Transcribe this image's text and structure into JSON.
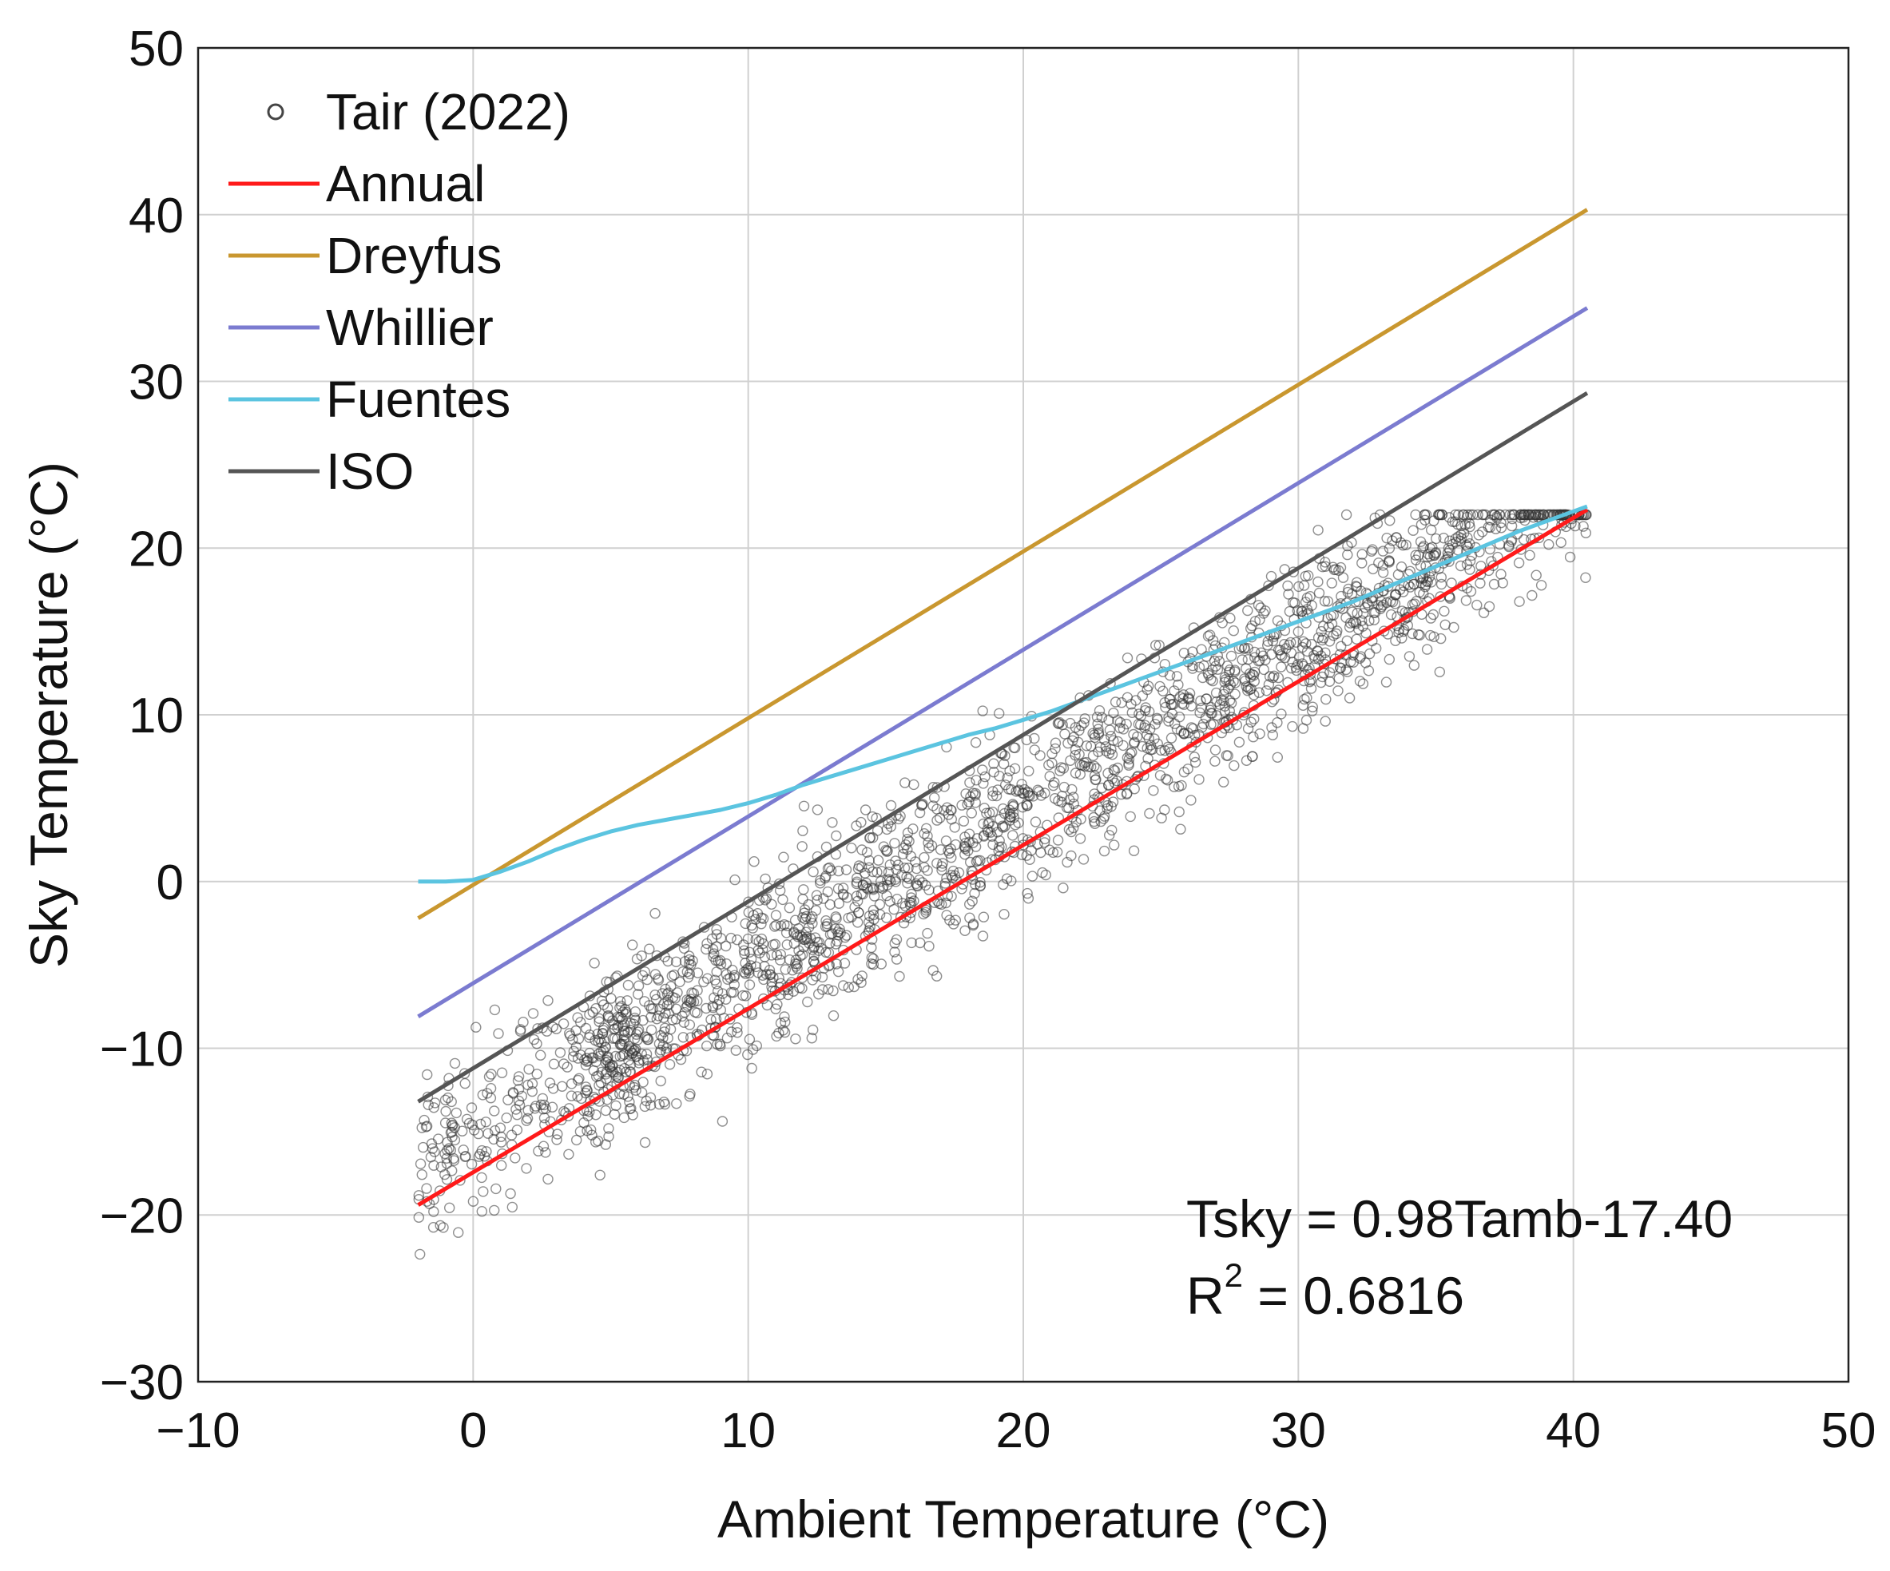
{
  "chart_data": {
    "type": "scatter",
    "xlabel": "Ambient Temperature (°C)",
    "ylabel": "Sky Temperature (°C)",
    "xlim": [
      -10,
      50
    ],
    "ylim": [
      -30,
      50
    ],
    "xticks": [
      -10,
      0,
      10,
      20,
      30,
      40,
      50
    ],
    "yticks": [
      -30,
      -20,
      -10,
      0,
      10,
      20,
      30,
      40,
      50
    ],
    "xtick_labels": [
      "−10",
      "0",
      "10",
      "20",
      "30",
      "40",
      "50"
    ],
    "ytick_labels": [
      "−30",
      "−20",
      "−10",
      "0",
      "10",
      "20",
      "30",
      "40",
      "50"
    ],
    "grid": true,
    "legend_position": "top-left",
    "scatter": {
      "name": "Tair (2022)",
      "marker": "open-circle",
      "color": "#444444",
      "band": {
        "x_range": [
          -2,
          40.5
        ],
        "approx_center": "y = 0.98x - 17.4",
        "spread": "about ±9 °C"
      }
    },
    "series": [
      {
        "name": "Annual",
        "color": "#ff1a1a",
        "x": [
          -2,
          40.5
        ],
        "y": [
          -19.4,
          22.3
        ]
      },
      {
        "name": "Dreyfus",
        "color": "#c9972f",
        "x": [
          -2,
          40.5
        ],
        "y": [
          -2.2,
          40.3
        ]
      },
      {
        "name": "Whillier",
        "color": "#7b7bd0",
        "x": [
          -2,
          40.5
        ],
        "y": [
          -8.1,
          34.4
        ]
      },
      {
        "name": "Fuentes",
        "color": "#5bc4e0",
        "x": [
          -2,
          -1,
          0,
          1,
          2,
          3,
          4,
          5,
          6,
          7,
          8,
          9,
          10,
          11,
          12,
          13,
          14,
          15,
          16,
          17,
          18,
          19,
          20,
          21,
          22,
          23,
          24,
          25,
          26,
          27,
          28,
          29,
          30,
          31,
          32,
          33,
          34,
          35,
          36,
          37,
          38,
          39,
          40,
          40.5
        ],
        "y": [
          0,
          0,
          0.1,
          0.6,
          1.2,
          1.9,
          2.5,
          3.0,
          3.4,
          3.7,
          4.0,
          4.3,
          4.7,
          5.2,
          5.8,
          6.3,
          6.8,
          7.3,
          7.8,
          8.3,
          8.8,
          9.2,
          9.7,
          10.2,
          10.8,
          11.4,
          12.0,
          12.6,
          13.2,
          13.8,
          14.4,
          15.0,
          15.6,
          16.2,
          16.8,
          17.5,
          18.2,
          18.9,
          19.6,
          20.3,
          21.0,
          21.6,
          22.2,
          22.5
        ]
      },
      {
        "name": "ISO",
        "color": "#555555",
        "x": [
          -2,
          40.5
        ],
        "y": [
          -13.2,
          29.3
        ]
      }
    ],
    "annotations": [
      "Tsky = 0.98Tamb-17.40",
      "R",
      "2",
      " = 0.6816"
    ]
  }
}
